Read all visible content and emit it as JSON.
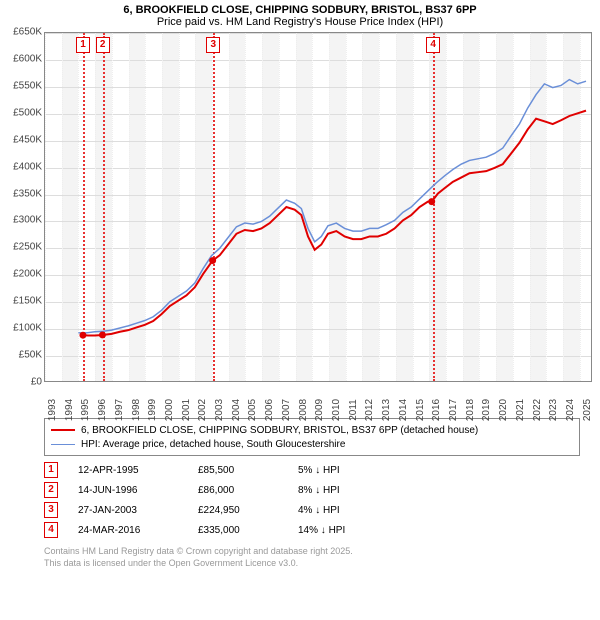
{
  "titles": {
    "main": "6, BROOKFIELD CLOSE, CHIPPING SODBURY, BRISTOL, BS37 6PP",
    "sub": "Price paid vs. HM Land Registry's House Price Index (HPI)"
  },
  "chart": {
    "y": {
      "min": 0,
      "max": 650000,
      "step": 50000,
      "fmt_prefix": "£",
      "fmt_suffix": "K",
      "fmt_div": 1000
    },
    "x": {
      "min": 1993,
      "max": 2025.8,
      "years": [
        1993,
        1994,
        1995,
        1996,
        1997,
        1998,
        1999,
        2000,
        2001,
        2002,
        2003,
        2004,
        2005,
        2006,
        2007,
        2008,
        2009,
        2010,
        2011,
        2012,
        2013,
        2014,
        2015,
        2016,
        2017,
        2018,
        2019,
        2020,
        2021,
        2022,
        2023,
        2024,
        2025
      ]
    },
    "bands": [
      [
        1994,
        1995
      ],
      [
        1996,
        1997
      ],
      [
        1998,
        1999
      ],
      [
        2000,
        2001
      ],
      [
        2002,
        2003
      ],
      [
        2004,
        2005
      ],
      [
        2006,
        2007
      ],
      [
        2008,
        2009
      ],
      [
        2010,
        2011
      ],
      [
        2012,
        2013
      ],
      [
        2014,
        2015
      ],
      [
        2016,
        2017
      ],
      [
        2018,
        2019
      ],
      [
        2020,
        2021
      ],
      [
        2022,
        2023
      ],
      [
        2024,
        2025
      ]
    ],
    "markers": [
      {
        "n": "1",
        "year": 1995.28
      },
      {
        "n": "2",
        "year": 1996.45
      },
      {
        "n": "3",
        "year": 2003.07
      },
      {
        "n": "4",
        "year": 2016.23
      }
    ],
    "series": [
      {
        "name": "price-paid",
        "label": "6, BROOKFIELD CLOSE, CHIPPING SODBURY, BRISTOL, BS37 6PP (detached house)",
        "color": "#e00000",
        "width": 2,
        "points": [
          [
            1995.28,
            85500
          ],
          [
            1995.6,
            85000
          ],
          [
            1996.0,
            85000
          ],
          [
            1996.45,
            86000
          ],
          [
            1997.0,
            88000
          ],
          [
            1997.5,
            92000
          ],
          [
            1998.0,
            95000
          ],
          [
            1998.5,
            100000
          ],
          [
            1999.0,
            105000
          ],
          [
            1999.5,
            112000
          ],
          [
            2000.0,
            125000
          ],
          [
            2000.5,
            140000
          ],
          [
            2001.0,
            150000
          ],
          [
            2001.5,
            160000
          ],
          [
            2002.0,
            175000
          ],
          [
            2002.5,
            200000
          ],
          [
            2003.07,
            224950
          ],
          [
            2003.5,
            235000
          ],
          [
            2004.0,
            255000
          ],
          [
            2004.5,
            275000
          ],
          [
            2005.0,
            282000
          ],
          [
            2005.5,
            280000
          ],
          [
            2006.0,
            285000
          ],
          [
            2006.5,
            295000
          ],
          [
            2007.0,
            310000
          ],
          [
            2007.5,
            325000
          ],
          [
            2008.0,
            320000
          ],
          [
            2008.4,
            310000
          ],
          [
            2008.8,
            270000
          ],
          [
            2009.2,
            245000
          ],
          [
            2009.6,
            255000
          ],
          [
            2010.0,
            275000
          ],
          [
            2010.5,
            280000
          ],
          [
            2011.0,
            270000
          ],
          [
            2011.5,
            265000
          ],
          [
            2012.0,
            265000
          ],
          [
            2012.5,
            270000
          ],
          [
            2013.0,
            270000
          ],
          [
            2013.5,
            275000
          ],
          [
            2014.0,
            285000
          ],
          [
            2014.5,
            300000
          ],
          [
            2015.0,
            310000
          ],
          [
            2015.5,
            325000
          ],
          [
            2016.0,
            335000
          ],
          [
            2016.23,
            335000
          ],
          [
            2016.6,
            350000
          ],
          [
            2017.0,
            360000
          ],
          [
            2017.5,
            372000
          ],
          [
            2018.0,
            380000
          ],
          [
            2018.5,
            388000
          ],
          [
            2019.0,
            390000
          ],
          [
            2019.5,
            392000
          ],
          [
            2020.0,
            398000
          ],
          [
            2020.5,
            405000
          ],
          [
            2021.0,
            425000
          ],
          [
            2021.5,
            445000
          ],
          [
            2022.0,
            470000
          ],
          [
            2022.5,
            490000
          ],
          [
            2023.0,
            485000
          ],
          [
            2023.5,
            480000
          ],
          [
            2024.0,
            487000
          ],
          [
            2024.5,
            495000
          ],
          [
            2025.0,
            500000
          ],
          [
            2025.5,
            505000
          ]
        ],
        "sale_points": [
          [
            1995.28,
            85500
          ],
          [
            1996.45,
            86000
          ],
          [
            2003.07,
            224950
          ],
          [
            2016.23,
            335000
          ]
        ]
      },
      {
        "name": "hpi",
        "label": "HPI: Average price, detached house, South Gloucestershire",
        "color": "#6a8fd8",
        "width": 1.5,
        "points": [
          [
            1995.0,
            90000
          ],
          [
            1995.5,
            90000
          ],
          [
            1996.0,
            92000
          ],
          [
            1996.5,
            93000
          ],
          [
            1997.0,
            95000
          ],
          [
            1997.5,
            99000
          ],
          [
            1998.0,
            103000
          ],
          [
            1998.5,
            108000
          ],
          [
            1999.0,
            113000
          ],
          [
            1999.5,
            120000
          ],
          [
            2000.0,
            132000
          ],
          [
            2000.5,
            148000
          ],
          [
            2001.0,
            158000
          ],
          [
            2001.5,
            168000
          ],
          [
            2002.0,
            183000
          ],
          [
            2002.5,
            210000
          ],
          [
            2003.0,
            234000
          ],
          [
            2003.5,
            248000
          ],
          [
            2004.0,
            268000
          ],
          [
            2004.5,
            288000
          ],
          [
            2005.0,
            295000
          ],
          [
            2005.5,
            293000
          ],
          [
            2006.0,
            298000
          ],
          [
            2006.5,
            308000
          ],
          [
            2007.0,
            323000
          ],
          [
            2007.5,
            338000
          ],
          [
            2008.0,
            332000
          ],
          [
            2008.4,
            322000
          ],
          [
            2008.8,
            285000
          ],
          [
            2009.2,
            260000
          ],
          [
            2009.6,
            270000
          ],
          [
            2010.0,
            290000
          ],
          [
            2010.5,
            295000
          ],
          [
            2011.0,
            285000
          ],
          [
            2011.5,
            280000
          ],
          [
            2012.0,
            280000
          ],
          [
            2012.5,
            285000
          ],
          [
            2013.0,
            285000
          ],
          [
            2013.5,
            292000
          ],
          [
            2014.0,
            300000
          ],
          [
            2014.5,
            315000
          ],
          [
            2015.0,
            325000
          ],
          [
            2015.5,
            340000
          ],
          [
            2016.0,
            355000
          ],
          [
            2016.5,
            370000
          ],
          [
            2017.0,
            383000
          ],
          [
            2017.5,
            395000
          ],
          [
            2018.0,
            405000
          ],
          [
            2018.5,
            412000
          ],
          [
            2019.0,
            415000
          ],
          [
            2019.5,
            418000
          ],
          [
            2020.0,
            425000
          ],
          [
            2020.5,
            435000
          ],
          [
            2021.0,
            458000
          ],
          [
            2021.5,
            480000
          ],
          [
            2022.0,
            510000
          ],
          [
            2022.5,
            535000
          ],
          [
            2023.0,
            555000
          ],
          [
            2023.5,
            548000
          ],
          [
            2024.0,
            552000
          ],
          [
            2024.5,
            563000
          ],
          [
            2025.0,
            555000
          ],
          [
            2025.5,
            560000
          ]
        ]
      }
    ],
    "grid_color": "#dddddd",
    "background_color": "#ffffff"
  },
  "transactions": [
    {
      "n": "1",
      "date": "12-APR-1995",
      "price": "£85,500",
      "diff": "5% ↓ HPI"
    },
    {
      "n": "2",
      "date": "14-JUN-1996",
      "price": "£86,000",
      "diff": "8% ↓ HPI"
    },
    {
      "n": "3",
      "date": "27-JAN-2003",
      "price": "£224,950",
      "diff": "4% ↓ HPI"
    },
    {
      "n": "4",
      "date": "24-MAR-2016",
      "price": "£335,000",
      "diff": "14% ↓ HPI"
    }
  ],
  "credits": {
    "l1": "Contains HM Land Registry data © Crown copyright and database right 2025.",
    "l2": "This data is licensed under the Open Government Licence v3.0."
  }
}
